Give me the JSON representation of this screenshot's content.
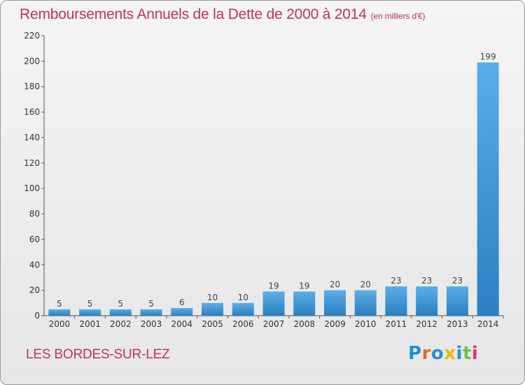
{
  "title": "Remboursements Annuels de la Dette de 2000 à 2014",
  "unit": "(en milliers d'€)",
  "town": "LES BORDES-SUR-LEZ",
  "logo": {
    "text": "Proxiti",
    "colors": [
      "#1f8ed6",
      "#e86a1e",
      "#2a8fd8",
      "#e6b800",
      "#2a8fd8",
      "#7ac143",
      "#e6336e"
    ]
  },
  "colors": {
    "bar": "#3a93d6",
    "title": "#c0306a"
  },
  "chart_data": {
    "type": "bar",
    "categories": [
      "2000",
      "2001",
      "2002",
      "2003",
      "2004",
      "2005",
      "2006",
      "2007",
      "2008",
      "2009",
      "2010",
      "2011",
      "2012",
      "2013",
      "2014"
    ],
    "values": [
      5,
      5,
      5,
      5,
      6,
      10,
      10,
      19,
      19,
      20,
      20,
      23,
      23,
      23,
      199
    ],
    "ylim": [
      0,
      220
    ],
    "yticks": [
      0,
      20,
      40,
      60,
      80,
      100,
      120,
      140,
      160,
      180,
      200,
      220
    ],
    "grid": false,
    "data_labels": true
  }
}
